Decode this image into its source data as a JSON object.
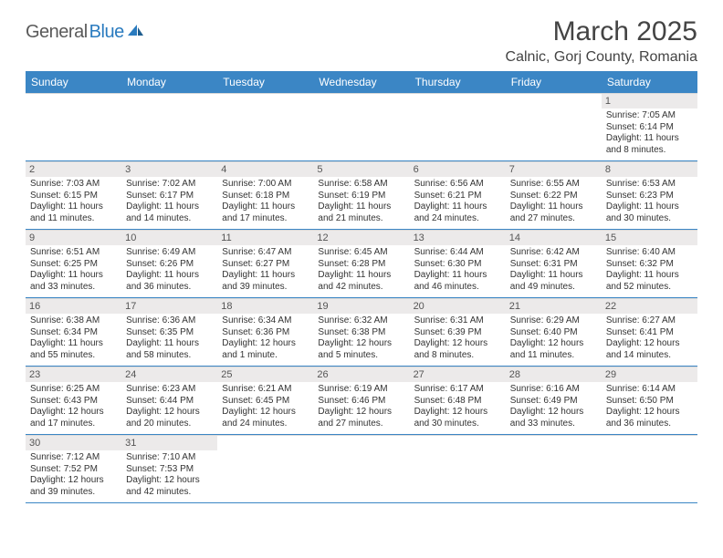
{
  "logo": {
    "general": "General",
    "blue": "Blue"
  },
  "title": "March 2025",
  "location": "Calnic, Gorj County, Romania",
  "colors": {
    "header_bg": "#3b86c5",
    "daynum_bg": "#eceaea",
    "row_border": "#3b86c5",
    "cell_border": "#d9d9d9"
  },
  "day_names": [
    "Sunday",
    "Monday",
    "Tuesday",
    "Wednesday",
    "Thursday",
    "Friday",
    "Saturday"
  ],
  "weeks": [
    [
      null,
      null,
      null,
      null,
      null,
      null,
      {
        "n": "1",
        "sr": "Sunrise: 7:05 AM",
        "ss": "Sunset: 6:14 PM",
        "dl": "Daylight: 11 hours and 8 minutes."
      }
    ],
    [
      {
        "n": "2",
        "sr": "Sunrise: 7:03 AM",
        "ss": "Sunset: 6:15 PM",
        "dl": "Daylight: 11 hours and 11 minutes."
      },
      {
        "n": "3",
        "sr": "Sunrise: 7:02 AM",
        "ss": "Sunset: 6:17 PM",
        "dl": "Daylight: 11 hours and 14 minutes."
      },
      {
        "n": "4",
        "sr": "Sunrise: 7:00 AM",
        "ss": "Sunset: 6:18 PM",
        "dl": "Daylight: 11 hours and 17 minutes."
      },
      {
        "n": "5",
        "sr": "Sunrise: 6:58 AM",
        "ss": "Sunset: 6:19 PM",
        "dl": "Daylight: 11 hours and 21 minutes."
      },
      {
        "n": "6",
        "sr": "Sunrise: 6:56 AM",
        "ss": "Sunset: 6:21 PM",
        "dl": "Daylight: 11 hours and 24 minutes."
      },
      {
        "n": "7",
        "sr": "Sunrise: 6:55 AM",
        "ss": "Sunset: 6:22 PM",
        "dl": "Daylight: 11 hours and 27 minutes."
      },
      {
        "n": "8",
        "sr": "Sunrise: 6:53 AM",
        "ss": "Sunset: 6:23 PM",
        "dl": "Daylight: 11 hours and 30 minutes."
      }
    ],
    [
      {
        "n": "9",
        "sr": "Sunrise: 6:51 AM",
        "ss": "Sunset: 6:25 PM",
        "dl": "Daylight: 11 hours and 33 minutes."
      },
      {
        "n": "10",
        "sr": "Sunrise: 6:49 AM",
        "ss": "Sunset: 6:26 PM",
        "dl": "Daylight: 11 hours and 36 minutes."
      },
      {
        "n": "11",
        "sr": "Sunrise: 6:47 AM",
        "ss": "Sunset: 6:27 PM",
        "dl": "Daylight: 11 hours and 39 minutes."
      },
      {
        "n": "12",
        "sr": "Sunrise: 6:45 AM",
        "ss": "Sunset: 6:28 PM",
        "dl": "Daylight: 11 hours and 42 minutes."
      },
      {
        "n": "13",
        "sr": "Sunrise: 6:44 AM",
        "ss": "Sunset: 6:30 PM",
        "dl": "Daylight: 11 hours and 46 minutes."
      },
      {
        "n": "14",
        "sr": "Sunrise: 6:42 AM",
        "ss": "Sunset: 6:31 PM",
        "dl": "Daylight: 11 hours and 49 minutes."
      },
      {
        "n": "15",
        "sr": "Sunrise: 6:40 AM",
        "ss": "Sunset: 6:32 PM",
        "dl": "Daylight: 11 hours and 52 minutes."
      }
    ],
    [
      {
        "n": "16",
        "sr": "Sunrise: 6:38 AM",
        "ss": "Sunset: 6:34 PM",
        "dl": "Daylight: 11 hours and 55 minutes."
      },
      {
        "n": "17",
        "sr": "Sunrise: 6:36 AM",
        "ss": "Sunset: 6:35 PM",
        "dl": "Daylight: 11 hours and 58 minutes."
      },
      {
        "n": "18",
        "sr": "Sunrise: 6:34 AM",
        "ss": "Sunset: 6:36 PM",
        "dl": "Daylight: 12 hours and 1 minute."
      },
      {
        "n": "19",
        "sr": "Sunrise: 6:32 AM",
        "ss": "Sunset: 6:38 PM",
        "dl": "Daylight: 12 hours and 5 minutes."
      },
      {
        "n": "20",
        "sr": "Sunrise: 6:31 AM",
        "ss": "Sunset: 6:39 PM",
        "dl": "Daylight: 12 hours and 8 minutes."
      },
      {
        "n": "21",
        "sr": "Sunrise: 6:29 AM",
        "ss": "Sunset: 6:40 PM",
        "dl": "Daylight: 12 hours and 11 minutes."
      },
      {
        "n": "22",
        "sr": "Sunrise: 6:27 AM",
        "ss": "Sunset: 6:41 PM",
        "dl": "Daylight: 12 hours and 14 minutes."
      }
    ],
    [
      {
        "n": "23",
        "sr": "Sunrise: 6:25 AM",
        "ss": "Sunset: 6:43 PM",
        "dl": "Daylight: 12 hours and 17 minutes."
      },
      {
        "n": "24",
        "sr": "Sunrise: 6:23 AM",
        "ss": "Sunset: 6:44 PM",
        "dl": "Daylight: 12 hours and 20 minutes."
      },
      {
        "n": "25",
        "sr": "Sunrise: 6:21 AM",
        "ss": "Sunset: 6:45 PM",
        "dl": "Daylight: 12 hours and 24 minutes."
      },
      {
        "n": "26",
        "sr": "Sunrise: 6:19 AM",
        "ss": "Sunset: 6:46 PM",
        "dl": "Daylight: 12 hours and 27 minutes."
      },
      {
        "n": "27",
        "sr": "Sunrise: 6:17 AM",
        "ss": "Sunset: 6:48 PM",
        "dl": "Daylight: 12 hours and 30 minutes."
      },
      {
        "n": "28",
        "sr": "Sunrise: 6:16 AM",
        "ss": "Sunset: 6:49 PM",
        "dl": "Daylight: 12 hours and 33 minutes."
      },
      {
        "n": "29",
        "sr": "Sunrise: 6:14 AM",
        "ss": "Sunset: 6:50 PM",
        "dl": "Daylight: 12 hours and 36 minutes."
      }
    ],
    [
      {
        "n": "30",
        "sr": "Sunrise: 7:12 AM",
        "ss": "Sunset: 7:52 PM",
        "dl": "Daylight: 12 hours and 39 minutes."
      },
      {
        "n": "31",
        "sr": "Sunrise: 7:10 AM",
        "ss": "Sunset: 7:53 PM",
        "dl": "Daylight: 12 hours and 42 minutes."
      },
      null,
      null,
      null,
      null,
      null
    ]
  ]
}
